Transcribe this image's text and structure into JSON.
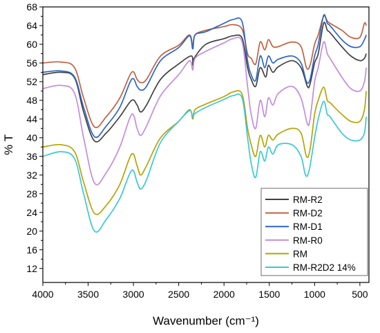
{
  "chart_data": {
    "type": "line",
    "xlabel": "Wavenumber (cm⁻¹)",
    "ylabel": "% T",
    "xlim": [
      4000,
      400
    ],
    "ylim": [
      9,
      68
    ],
    "x_reversed": true,
    "grid": false,
    "legend_position": "bottom-right",
    "x_ticks": [
      4000,
      3500,
      3000,
      2500,
      2000,
      1500,
      1000,
      500
    ],
    "y_ticks": [
      12,
      16,
      20,
      24,
      28,
      32,
      36,
      40,
      44,
      48,
      52,
      56,
      60,
      64,
      68
    ],
    "series": [
      {
        "name": "RM-R2",
        "color": "#404040",
        "points": [
          [
            4000,
            53.5
          ],
          [
            3800,
            54.0
          ],
          [
            3650,
            52.8
          ],
          [
            3550,
            45.5
          ],
          [
            3430,
            39.3
          ],
          [
            3300,
            41.0
          ],
          [
            3150,
            44.5
          ],
          [
            3020,
            48.0
          ],
          [
            2960,
            47.0
          ],
          [
            2920,
            45.5
          ],
          [
            2855,
            47.0
          ],
          [
            2700,
            52.5
          ],
          [
            2500,
            55.8
          ],
          [
            2360,
            57.5
          ],
          [
            2345,
            55.5
          ],
          [
            2330,
            57.0
          ],
          [
            2200,
            60.0
          ],
          [
            2000,
            61.2
          ],
          [
            1900,
            61.8
          ],
          [
            1800,
            61.3
          ],
          [
            1740,
            55.0
          ],
          [
            1700,
            52.5
          ],
          [
            1650,
            51.0
          ],
          [
            1600,
            55.0
          ],
          [
            1540,
            53.0
          ],
          [
            1510,
            55.5
          ],
          [
            1460,
            54.0
          ],
          [
            1400,
            55.2
          ],
          [
            1250,
            56.5
          ],
          [
            1150,
            55.0
          ],
          [
            1080,
            51.0
          ],
          [
            1050,
            51.5
          ],
          [
            1000,
            56.0
          ],
          [
            960,
            58.0
          ],
          [
            900,
            64.5
          ],
          [
            860,
            63.0
          ],
          [
            830,
            62.5
          ],
          [
            700,
            59.5
          ],
          [
            600,
            57.5
          ],
          [
            500,
            56.5
          ],
          [
            450,
            57.0
          ],
          [
            430,
            58.0
          ]
        ]
      },
      {
        "name": "RM-D2",
        "color": "#c0603e",
        "points": [
          [
            4000,
            56.0
          ],
          [
            3800,
            56.2
          ],
          [
            3650,
            55.0
          ],
          [
            3550,
            48.5
          ],
          [
            3430,
            42.3
          ],
          [
            3300,
            44.5
          ],
          [
            3150,
            48.5
          ],
          [
            3020,
            54.0
          ],
          [
            2960,
            52.5
          ],
          [
            2920,
            51.8
          ],
          [
            2855,
            52.5
          ],
          [
            2700,
            57.5
          ],
          [
            2500,
            59.8
          ],
          [
            2380,
            62.0
          ],
          [
            2345,
            59.5
          ],
          [
            2320,
            62.0
          ],
          [
            2200,
            63.0
          ],
          [
            2000,
            63.8
          ],
          [
            1900,
            64.2
          ],
          [
            1800,
            63.2
          ],
          [
            1740,
            58.0
          ],
          [
            1700,
            57.0
          ],
          [
            1650,
            55.8
          ],
          [
            1600,
            60.5
          ],
          [
            1550,
            58.8
          ],
          [
            1510,
            61.0
          ],
          [
            1460,
            59.5
          ],
          [
            1400,
            59.5
          ],
          [
            1250,
            60.5
          ],
          [
            1150,
            59.5
          ],
          [
            1090,
            55.0
          ],
          [
            1050,
            55.5
          ],
          [
            1000,
            60.0
          ],
          [
            960,
            62.0
          ],
          [
            900,
            66.0
          ],
          [
            860,
            65.0
          ],
          [
            830,
            64.5
          ],
          [
            700,
            63.0
          ],
          [
            600,
            61.5
          ],
          [
            500,
            61.5
          ],
          [
            450,
            64.5
          ],
          [
            430,
            64.0
          ]
        ]
      },
      {
        "name": "RM-D1",
        "color": "#2a65c8",
        "points": [
          [
            4000,
            54.0
          ],
          [
            3800,
            54.3
          ],
          [
            3650,
            53.0
          ],
          [
            3550,
            46.5
          ],
          [
            3430,
            40.2
          ],
          [
            3300,
            42.5
          ],
          [
            3150,
            46.5
          ],
          [
            3020,
            52.5
          ],
          [
            2960,
            51.0
          ],
          [
            2920,
            50.2
          ],
          [
            2855,
            51.0
          ],
          [
            2700,
            56.5
          ],
          [
            2500,
            59.3
          ],
          [
            2380,
            61.8
          ],
          [
            2345,
            59.0
          ],
          [
            2320,
            62.0
          ],
          [
            2200,
            62.7
          ],
          [
            2000,
            64.5
          ],
          [
            1900,
            65.3
          ],
          [
            1800,
            64.8
          ],
          [
            1740,
            56.5
          ],
          [
            1700,
            53.5
          ],
          [
            1650,
            52.3
          ],
          [
            1600,
            57.5
          ],
          [
            1550,
            55.0
          ],
          [
            1510,
            57.5
          ],
          [
            1460,
            56.0
          ],
          [
            1400,
            56.8
          ],
          [
            1250,
            57.5
          ],
          [
            1150,
            56.0
          ],
          [
            1090,
            52.0
          ],
          [
            1050,
            52.5
          ],
          [
            1000,
            57.5
          ],
          [
            960,
            60.0
          ],
          [
            900,
            66.2
          ],
          [
            860,
            64.5
          ],
          [
            830,
            64.0
          ],
          [
            700,
            61.0
          ],
          [
            600,
            59.5
          ],
          [
            500,
            59.5
          ],
          [
            450,
            61.0
          ],
          [
            430,
            62.0
          ]
        ]
      },
      {
        "name": "RM-R0",
        "color": "#c08ce0",
        "points": [
          [
            4000,
            50.5
          ],
          [
            3800,
            51.2
          ],
          [
            3650,
            49.5
          ],
          [
            3550,
            40.0
          ],
          [
            3430,
            30.3
          ],
          [
            3300,
            32.5
          ],
          [
            3150,
            38.0
          ],
          [
            3020,
            45.0
          ],
          [
            2960,
            42.0
          ],
          [
            2920,
            40.5
          ],
          [
            2855,
            42.5
          ],
          [
            2700,
            49.0
          ],
          [
            2500,
            53.5
          ],
          [
            2380,
            56.5
          ],
          [
            2345,
            54.5
          ],
          [
            2320,
            57.0
          ],
          [
            2200,
            58.5
          ],
          [
            2000,
            60.3
          ],
          [
            1900,
            61.2
          ],
          [
            1800,
            60.5
          ],
          [
            1740,
            51.0
          ],
          [
            1700,
            45.0
          ],
          [
            1650,
            42.0
          ],
          [
            1600,
            48.0
          ],
          [
            1550,
            44.5
          ],
          [
            1510,
            48.5
          ],
          [
            1460,
            47.0
          ],
          [
            1400,
            49.5
          ],
          [
            1250,
            51.0
          ],
          [
            1150,
            48.5
          ],
          [
            1080,
            43.0
          ],
          [
            1050,
            44.0
          ],
          [
            1000,
            52.0
          ],
          [
            960,
            55.0
          ],
          [
            900,
            60.5
          ],
          [
            860,
            58.0
          ],
          [
            830,
            57.0
          ],
          [
            700,
            53.0
          ],
          [
            600,
            50.5
          ],
          [
            500,
            50.0
          ],
          [
            450,
            52.0
          ],
          [
            430,
            55.0
          ]
        ]
      },
      {
        "name": "RM",
        "color": "#b8a200",
        "points": [
          [
            4000,
            38.0
          ],
          [
            3800,
            38.5
          ],
          [
            3650,
            37.0
          ],
          [
            3550,
            30.5
          ],
          [
            3430,
            23.8
          ],
          [
            3300,
            25.5
          ],
          [
            3150,
            30.0
          ],
          [
            3020,
            36.5
          ],
          [
            2960,
            34.0
          ],
          [
            2920,
            32.0
          ],
          [
            2855,
            34.0
          ],
          [
            2700,
            40.0
          ],
          [
            2500,
            43.5
          ],
          [
            2380,
            46.0
          ],
          [
            2345,
            44.0
          ],
          [
            2320,
            46.0
          ],
          [
            2200,
            47.2
          ],
          [
            2000,
            48.8
          ],
          [
            1900,
            49.8
          ],
          [
            1800,
            49.3
          ],
          [
            1740,
            42.0
          ],
          [
            1700,
            38.5
          ],
          [
            1650,
            36.0
          ],
          [
            1600,
            40.5
          ],
          [
            1550,
            38.0
          ],
          [
            1510,
            40.5
          ],
          [
            1460,
            39.5
          ],
          [
            1400,
            40.8
          ],
          [
            1250,
            42.0
          ],
          [
            1150,
            41.0
          ],
          [
            1090,
            36.0
          ],
          [
            1050,
            37.5
          ],
          [
            1000,
            45.0
          ],
          [
            960,
            48.0
          ],
          [
            900,
            50.8
          ],
          [
            860,
            48.0
          ],
          [
            830,
            47.5
          ],
          [
            700,
            45.0
          ],
          [
            600,
            43.5
          ],
          [
            500,
            43.5
          ],
          [
            450,
            46.0
          ],
          [
            430,
            50.0
          ]
        ]
      },
      {
        "name": "RM-R2D2 14%",
        "color": "#38c8d8",
        "points": [
          [
            4000,
            36.0
          ],
          [
            3800,
            37.0
          ],
          [
            3650,
            35.5
          ],
          [
            3550,
            28.0
          ],
          [
            3430,
            20.0
          ],
          [
            3300,
            22.5
          ],
          [
            3150,
            27.0
          ],
          [
            3020,
            33.0
          ],
          [
            2960,
            30.5
          ],
          [
            2920,
            29.0
          ],
          [
            2855,
            31.0
          ],
          [
            2700,
            39.0
          ],
          [
            2500,
            43.5
          ],
          [
            2380,
            45.8
          ],
          [
            2345,
            44.5
          ],
          [
            2320,
            45.2
          ],
          [
            2200,
            46.5
          ],
          [
            2000,
            48.2
          ],
          [
            1900,
            49.0
          ],
          [
            1800,
            48.5
          ],
          [
            1740,
            40.0
          ],
          [
            1700,
            34.5
          ],
          [
            1650,
            31.5
          ],
          [
            1600,
            37.0
          ],
          [
            1550,
            35.0
          ],
          [
            1510,
            38.0
          ],
          [
            1460,
            36.5
          ],
          [
            1400,
            38.5
          ],
          [
            1250,
            38.5
          ],
          [
            1150,
            36.0
          ],
          [
            1100,
            32.0
          ],
          [
            1060,
            33.0
          ],
          [
            1000,
            40.0
          ],
          [
            960,
            44.0
          ],
          [
            900,
            47.8
          ],
          [
            860,
            45.0
          ],
          [
            830,
            44.5
          ],
          [
            700,
            41.0
          ],
          [
            600,
            39.5
          ],
          [
            500,
            39.5
          ],
          [
            450,
            41.0
          ],
          [
            430,
            44.5
          ]
        ]
      }
    ]
  }
}
